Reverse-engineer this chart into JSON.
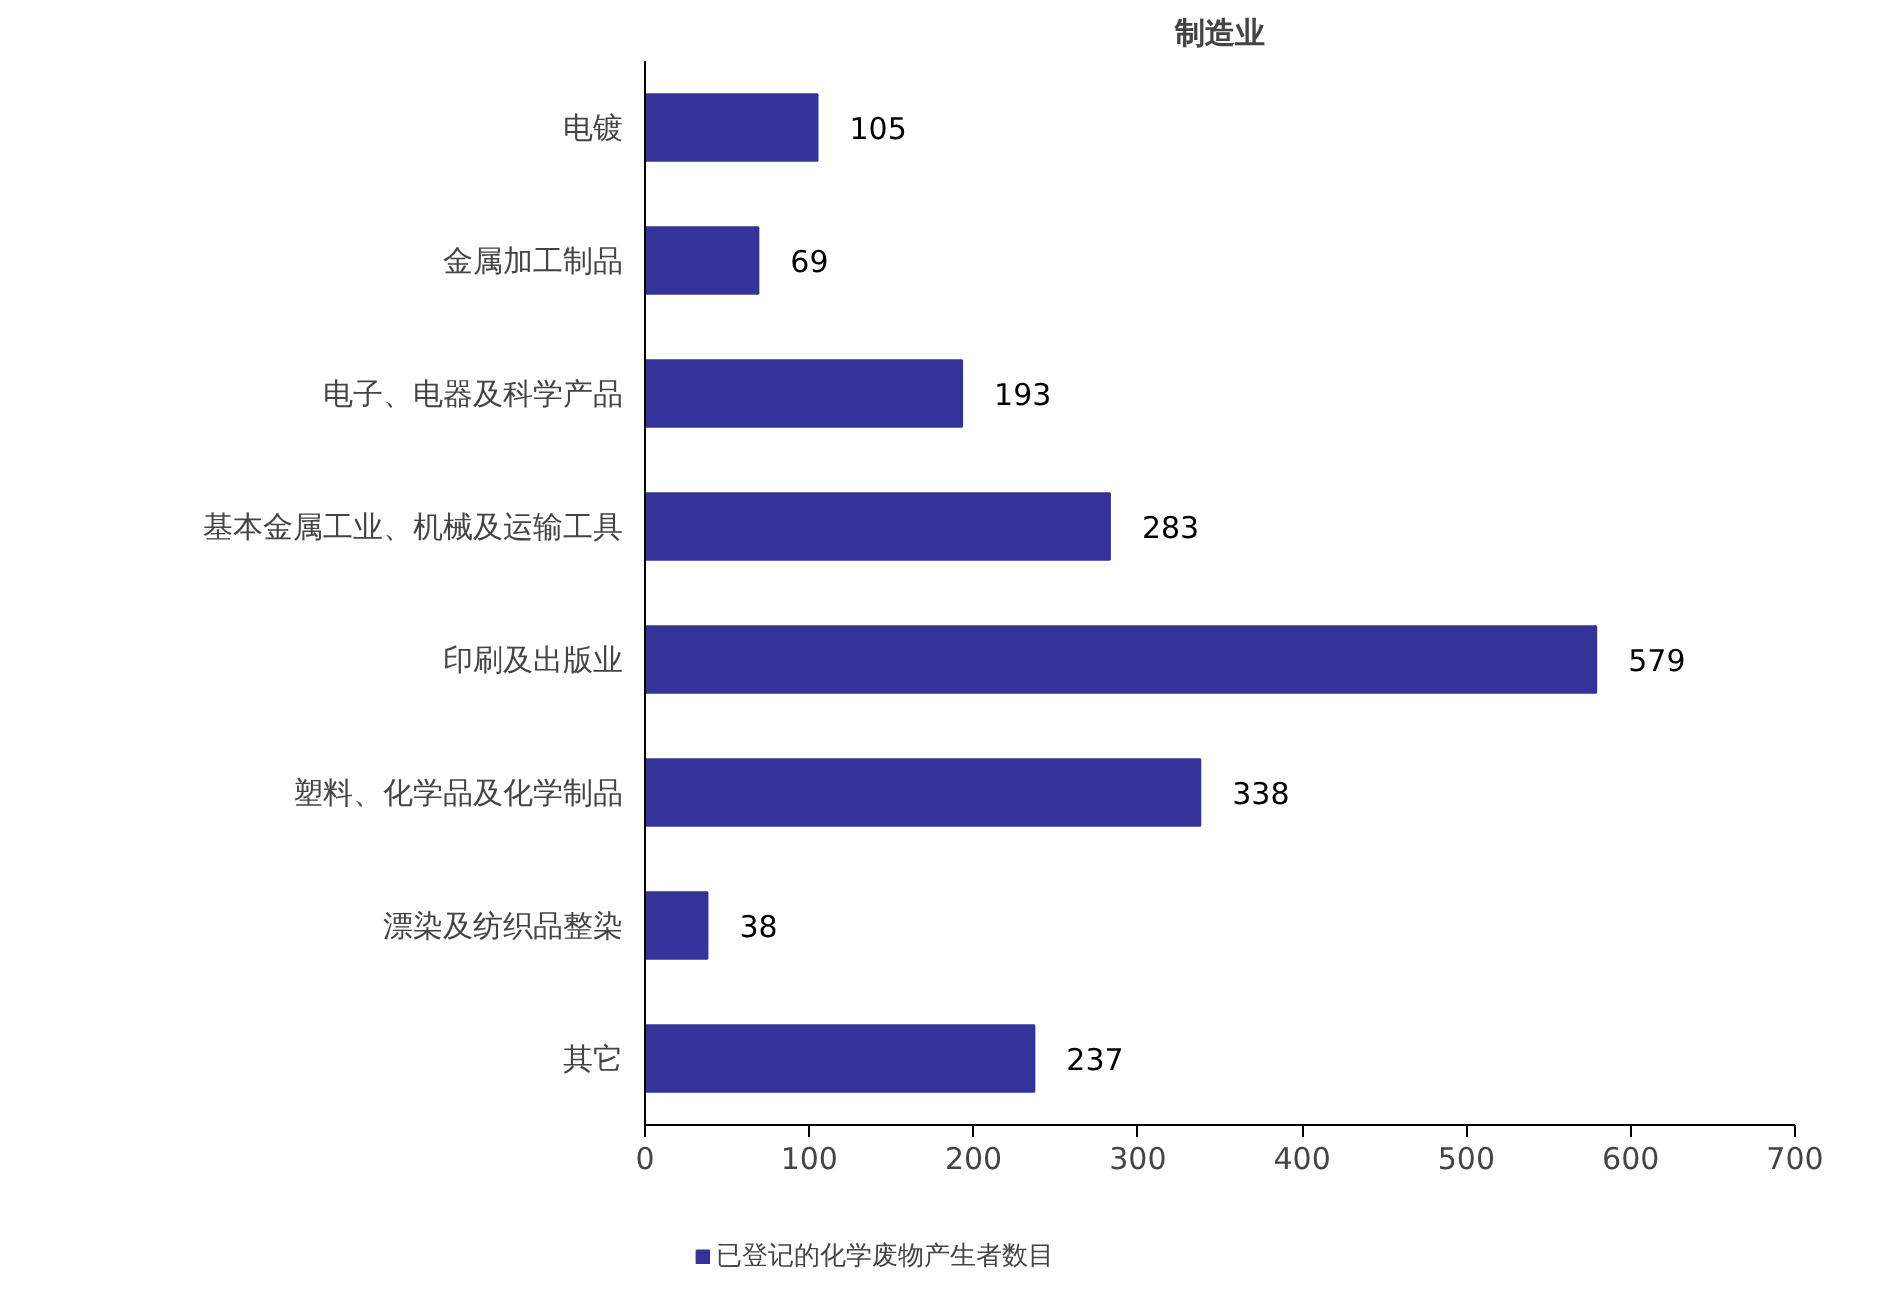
{
  "chart_data": {
    "type": "bar",
    "orientation": "horizontal",
    "title": "制造业",
    "categories": [
      "电镀",
      "金属加工制品",
      "电子、电器及科学产品",
      "基本金属工业、机械及运输工具",
      "印刷及出版业",
      "塑料、化学品及化学制品",
      "漂染及纺织品整染",
      "其它"
    ],
    "series": [
      {
        "name": "已登记的化学废物产生者数目",
        "color": "#333399",
        "values": [
          105,
          69,
          193,
          283,
          579,
          338,
          38,
          237
        ]
      }
    ],
    "xlim": [
      0,
      700
    ],
    "xticks": [
      0,
      100,
      200,
      300,
      400,
      500,
      600,
      700
    ],
    "data_labels": true,
    "grid": false,
    "legend": "bottom"
  }
}
